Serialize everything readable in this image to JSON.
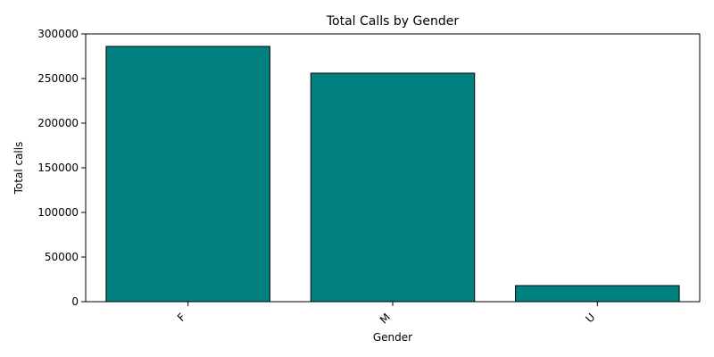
{
  "chart_data": {
    "type": "bar",
    "title": "Total Calls by Gender",
    "xlabel": "Gender",
    "ylabel": "Total calls",
    "categories": [
      "F",
      "M",
      "U"
    ],
    "values": [
      286000,
      256000,
      18000
    ],
    "ylim": [
      0,
      300000
    ],
    "yticks": [
      0,
      50000,
      100000,
      150000,
      200000,
      250000,
      300000
    ],
    "bar_color": "#008080",
    "bar_edge_color": "#000000",
    "grid": false,
    "legend": "none"
  }
}
